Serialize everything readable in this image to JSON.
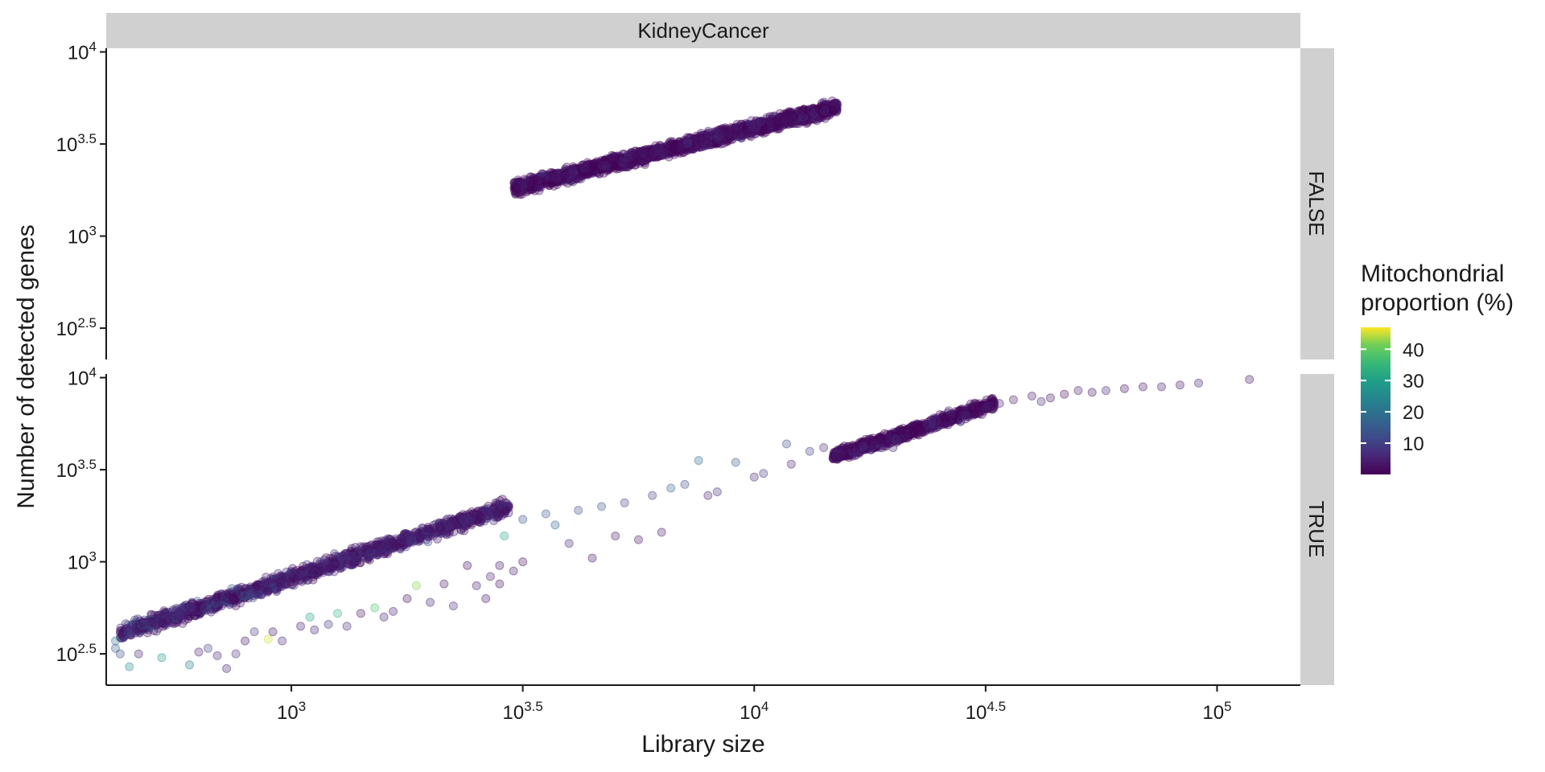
{
  "chart_data": {
    "type": "scatter",
    "facet_column": "KidneyCancer",
    "facet_rows": [
      "FALSE",
      "TRUE"
    ],
    "xlabel": "Library size",
    "ylabel": "Number of detected genes",
    "x_scale": "log10",
    "y_scale": "log10",
    "xlim_log10": [
      2.6,
      5.18
    ],
    "ylim_log10": [
      2.33,
      4.02
    ],
    "x_ticks": [
      {
        "base": "10",
        "exp": "3",
        "log10": 3.0
      },
      {
        "base": "10",
        "exp": "3.5",
        "log10": 3.5
      },
      {
        "base": "10",
        "exp": "4",
        "log10": 4.0
      },
      {
        "base": "10",
        "exp": "4.5",
        "log10": 4.5
      },
      {
        "base": "10",
        "exp": "5",
        "log10": 5.0
      }
    ],
    "y_ticks": [
      {
        "base": "10",
        "exp": "2.5",
        "log10": 2.5
      },
      {
        "base": "10",
        "exp": "3",
        "log10": 3.0
      },
      {
        "base": "10",
        "exp": "3.5",
        "log10": 3.5
      },
      {
        "base": "10",
        "exp": "4",
        "log10": 4.0
      }
    ],
    "legend": {
      "title_line1": "Mitochondrial",
      "title_line2": "proportion (%)",
      "ticks": [
        "10",
        "20",
        "30",
        "40"
      ],
      "tick_values": [
        10,
        20,
        30,
        40
      ],
      "range": [
        0,
        47
      ],
      "colormap": "viridis",
      "placement": "right"
    },
    "grid": false,
    "point_alpha": 0.3,
    "panels": [
      {
        "name": "FALSE",
        "dense_band": {
          "x_log10": [
            3.48,
            4.18
          ],
          "y_log10": [
            3.26,
            3.7
          ],
          "mito_pct": [
            0,
            9
          ]
        },
        "points": []
      },
      {
        "name": "TRUE",
        "dense_band_low": {
          "x_log10": [
            2.63,
            3.47
          ],
          "y_log10": [
            2.61,
            3.3
          ],
          "mito_pct": [
            0,
            20
          ]
        },
        "dense_band_high": {
          "x_log10": [
            4.17,
            4.52
          ],
          "y_log10": [
            3.57,
            3.86
          ],
          "mito_pct": [
            0,
            9
          ]
        },
        "points": [
          {
            "x": 2.62,
            "y": 2.57,
            "m": 20
          },
          {
            "x": 2.62,
            "y": 2.53,
            "m": 15
          },
          {
            "x": 2.63,
            "y": 2.5,
            "m": 12
          },
          {
            "x": 2.65,
            "y": 2.43,
            "m": 25
          },
          {
            "x": 2.67,
            "y": 2.5,
            "m": 5
          },
          {
            "x": 2.72,
            "y": 2.48,
            "m": 28
          },
          {
            "x": 2.78,
            "y": 2.44,
            "m": 22
          },
          {
            "x": 2.8,
            "y": 2.51,
            "m": 6
          },
          {
            "x": 2.82,
            "y": 2.53,
            "m": 10
          },
          {
            "x": 2.84,
            "y": 2.49,
            "m": 5
          },
          {
            "x": 2.86,
            "y": 2.42,
            "m": 4
          },
          {
            "x": 2.88,
            "y": 2.5,
            "m": 7
          },
          {
            "x": 2.9,
            "y": 2.57,
            "m": 3
          },
          {
            "x": 2.92,
            "y": 2.62,
            "m": 8
          },
          {
            "x": 2.95,
            "y": 2.58,
            "m": 45
          },
          {
            "x": 2.96,
            "y": 2.62,
            "m": 3
          },
          {
            "x": 2.98,
            "y": 2.57,
            "m": 6
          },
          {
            "x": 3.02,
            "y": 2.65,
            "m": 4
          },
          {
            "x": 3.04,
            "y": 2.7,
            "m": 30
          },
          {
            "x": 3.05,
            "y": 2.63,
            "m": 5
          },
          {
            "x": 3.08,
            "y": 2.66,
            "m": 8
          },
          {
            "x": 3.1,
            "y": 2.72,
            "m": 35
          },
          {
            "x": 3.12,
            "y": 2.65,
            "m": 6
          },
          {
            "x": 3.15,
            "y": 2.72,
            "m": 3
          },
          {
            "x": 3.18,
            "y": 2.75,
            "m": 38
          },
          {
            "x": 3.2,
            "y": 2.7,
            "m": 5
          },
          {
            "x": 3.22,
            "y": 2.73,
            "m": 4
          },
          {
            "x": 3.25,
            "y": 2.8,
            "m": 2
          },
          {
            "x": 3.27,
            "y": 2.87,
            "m": 42
          },
          {
            "x": 3.3,
            "y": 2.78,
            "m": 5
          },
          {
            "x": 3.33,
            "y": 2.88,
            "m": 3
          },
          {
            "x": 3.35,
            "y": 2.76,
            "m": 6
          },
          {
            "x": 3.38,
            "y": 2.98,
            "m": 2
          },
          {
            "x": 3.4,
            "y": 2.87,
            "m": 4
          },
          {
            "x": 3.42,
            "y": 2.8,
            "m": 3
          },
          {
            "x": 3.43,
            "y": 2.92,
            "m": 5
          },
          {
            "x": 3.45,
            "y": 2.88,
            "m": 2
          },
          {
            "x": 3.46,
            "y": 3.14,
            "m": 30
          },
          {
            "x": 3.45,
            "y": 2.98,
            "m": 3
          },
          {
            "x": 3.48,
            "y": 2.95,
            "m": 4
          },
          {
            "x": 3.5,
            "y": 3.0,
            "m": 2
          },
          {
            "x": 3.5,
            "y": 3.23,
            "m": 12
          },
          {
            "x": 3.55,
            "y": 3.26,
            "m": 15
          },
          {
            "x": 3.57,
            "y": 3.2,
            "m": 18
          },
          {
            "x": 3.6,
            "y": 3.1,
            "m": 6
          },
          {
            "x": 3.62,
            "y": 3.28,
            "m": 12
          },
          {
            "x": 3.65,
            "y": 3.02,
            "m": 3
          },
          {
            "x": 3.67,
            "y": 3.3,
            "m": 14
          },
          {
            "x": 3.7,
            "y": 3.14,
            "m": 4
          },
          {
            "x": 3.72,
            "y": 3.32,
            "m": 10
          },
          {
            "x": 3.75,
            "y": 3.12,
            "m": 3
          },
          {
            "x": 3.78,
            "y": 3.36,
            "m": 8
          },
          {
            "x": 3.8,
            "y": 3.16,
            "m": 4
          },
          {
            "x": 3.82,
            "y": 3.4,
            "m": 16
          },
          {
            "x": 3.85,
            "y": 3.42,
            "m": 12
          },
          {
            "x": 3.88,
            "y": 3.55,
            "m": 18
          },
          {
            "x": 3.9,
            "y": 3.36,
            "m": 5
          },
          {
            "x": 3.92,
            "y": 3.38,
            "m": 6
          },
          {
            "x": 3.96,
            "y": 3.54,
            "m": 15
          },
          {
            "x": 4.0,
            "y": 3.46,
            "m": 6
          },
          {
            "x": 4.02,
            "y": 3.48,
            "m": 8
          },
          {
            "x": 4.07,
            "y": 3.64,
            "m": 12
          },
          {
            "x": 4.08,
            "y": 3.53,
            "m": 5
          },
          {
            "x": 4.12,
            "y": 3.6,
            "m": 10
          },
          {
            "x": 4.15,
            "y": 3.62,
            "m": 6
          },
          {
            "x": 4.18,
            "y": 3.56,
            "m": 4
          },
          {
            "x": 4.22,
            "y": 3.58,
            "m": 5
          },
          {
            "x": 4.3,
            "y": 3.62,
            "m": 4
          },
          {
            "x": 4.42,
            "y": 3.82,
            "m": 6
          },
          {
            "x": 4.5,
            "y": 3.83,
            "m": 4
          },
          {
            "x": 4.53,
            "y": 3.86,
            "m": 5
          },
          {
            "x": 4.56,
            "y": 3.88,
            "m": 3
          },
          {
            "x": 4.6,
            "y": 3.9,
            "m": 4
          },
          {
            "x": 4.62,
            "y": 3.87,
            "m": 6
          },
          {
            "x": 4.64,
            "y": 3.89,
            "m": 3
          },
          {
            "x": 4.67,
            "y": 3.91,
            "m": 2
          },
          {
            "x": 4.7,
            "y": 3.93,
            "m": 4
          },
          {
            "x": 4.73,
            "y": 3.92,
            "m": 3
          },
          {
            "x": 4.76,
            "y": 3.93,
            "m": 5
          },
          {
            "x": 4.8,
            "y": 3.94,
            "m": 2
          },
          {
            "x": 4.84,
            "y": 3.95,
            "m": 3
          },
          {
            "x": 4.88,
            "y": 3.95,
            "m": 4
          },
          {
            "x": 4.92,
            "y": 3.96,
            "m": 3
          },
          {
            "x": 4.96,
            "y": 3.97,
            "m": 5
          },
          {
            "x": 5.07,
            "y": 3.99,
            "m": 3
          }
        ]
      }
    ]
  }
}
